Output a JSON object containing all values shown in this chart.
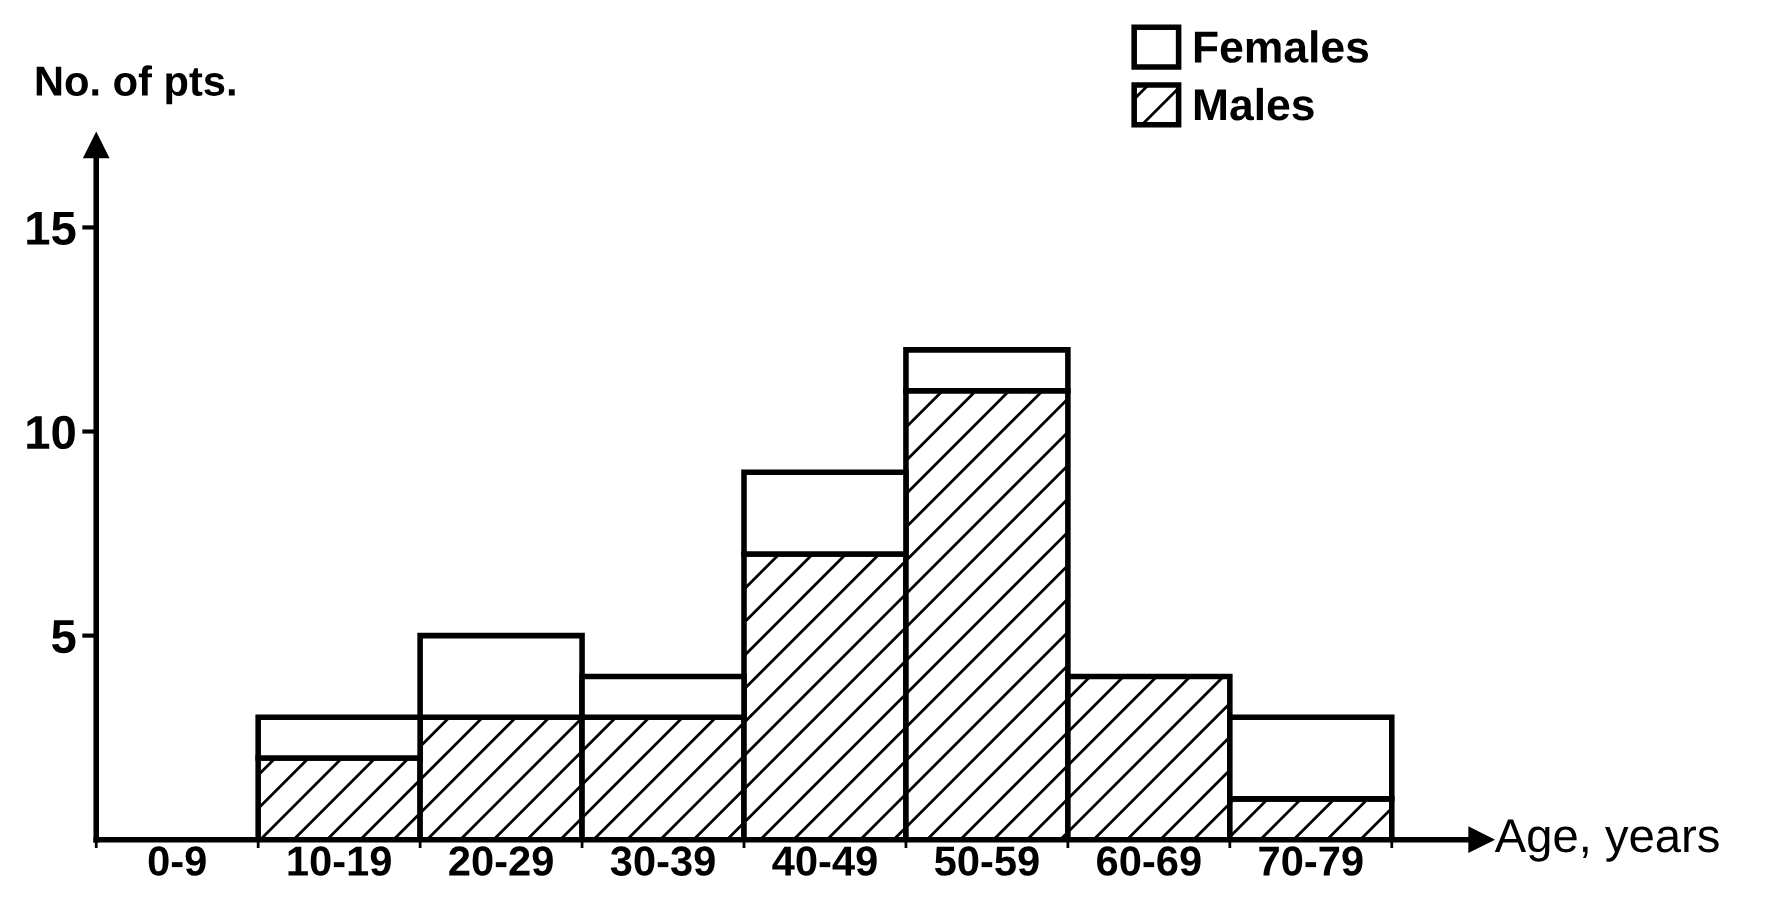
{
  "chart_data": {
    "type": "bar",
    "stacked": true,
    "xlabel": "Age, years",
    "ylabel": "No. of pts.",
    "categories": [
      "0-9",
      "10-19",
      "20-29",
      "30-39",
      "40-49",
      "50-59",
      "60-69",
      "70-79"
    ],
    "series": [
      {
        "name": "Males",
        "color": "#000000",
        "values": [
          0,
          2,
          3,
          3,
          7,
          11,
          4,
          1
        ]
      },
      {
        "name": "Females",
        "color": "#ffffff",
        "values": [
          0,
          1,
          2,
          1,
          2,
          1,
          0,
          2
        ]
      }
    ],
    "ylim": [
      0,
      17
    ],
    "yticks": [
      5,
      10,
      15
    ],
    "grid": false,
    "legend": "top right"
  }
}
